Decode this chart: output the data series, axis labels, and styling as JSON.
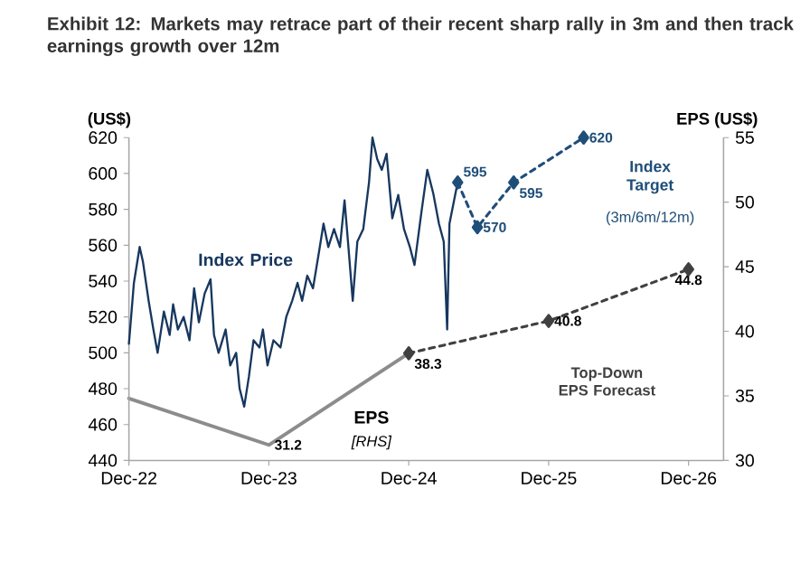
{
  "chart_data": {
    "type": "line",
    "title": "Exhibit 12: Markets may retrace part of their recent sharp rally in 3m and then track earnings growth over 12m",
    "ylabel": "(US$)",
    "y2label": "EPS (US$)",
    "annotations": [
      "[RHS]",
      "(3m/6m/12m)"
    ],
    "xlim": [
      "2022-12-01",
      "2027-03-01"
    ],
    "xticks": [
      {
        "value": "2022-12-01",
        "label": "Dec-22"
      },
      {
        "value": "2023-12-01",
        "label": "Dec-23"
      },
      {
        "value": "2024-12-01",
        "label": "Dec-24"
      },
      {
        "value": "2025-12-01",
        "label": "Dec-25"
      },
      {
        "value": "2026-12-01",
        "label": "Dec-26"
      }
    ],
    "ylim": [
      440,
      620
    ],
    "yticks": [
      440,
      460,
      480,
      500,
      520,
      540,
      560,
      580,
      600,
      620
    ],
    "y2lim": [
      30,
      55
    ],
    "y2ticks": [
      30,
      35,
      40,
      45,
      50,
      55
    ],
    "legend": false,
    "series": [
      {
        "name": "Index Price",
        "color": "#17375e",
        "x": [
          "2022-12-01",
          "2022-12-14",
          "2022-12-29",
          "2023-01-07",
          "2023-01-22",
          "2023-02-04",
          "2023-02-15",
          "2023-03-01",
          "2023-03-16",
          "2023-03-25",
          "2023-04-07",
          "2023-04-22",
          "2023-05-07",
          "2023-05-19",
          "2023-06-01",
          "2023-06-16",
          "2023-07-01",
          "2023-07-10",
          "2023-07-22",
          "2023-08-10",
          "2023-08-22",
          "2023-09-07",
          "2023-09-16",
          "2023-09-28",
          "2023-10-10",
          "2023-10-22",
          "2023-11-07",
          "2023-11-16",
          "2023-11-28",
          "2023-12-13",
          "2024-01-01",
          "2024-01-16",
          "2024-02-01",
          "2024-02-15",
          "2024-02-27",
          "2024-03-10",
          "2024-03-25",
          "2024-04-10",
          "2024-04-22",
          "2024-05-04",
          "2024-05-19",
          "2024-06-04",
          "2024-06-16",
          "2024-06-25",
          "2024-07-07",
          "2024-07-19",
          "2024-08-04",
          "2024-08-19",
          "2024-08-28",
          "2024-09-10",
          "2024-09-22",
          "2024-10-04",
          "2024-10-19",
          "2024-11-04",
          "2024-11-19",
          "2024-12-04",
          "2024-12-16",
          "2025-01-04",
          "2025-01-19",
          "2025-02-04",
          "2025-02-19",
          "2025-03-01",
          "2025-03-10",
          "2025-03-16",
          "2025-03-28",
          "2025-04-07"
        ],
        "values": [
          505,
          539,
          559,
          551,
          529,
          513,
          500,
          523,
          510,
          527,
          513,
          520,
          507,
          536,
          517,
          533,
          541,
          510,
          500,
          513,
          493,
          500,
          480,
          470,
          487,
          507,
          503,
          513,
          493,
          507,
          503,
          520,
          529,
          539,
          529,
          543,
          536,
          556,
          572,
          559,
          569,
          559,
          585,
          562,
          529,
          562,
          569,
          595,
          620,
          608,
          602,
          611,
          575,
          588,
          569,
          559,
          549,
          579,
          602,
          589,
          572,
          562,
          513,
          572,
          585,
          595
        ]
      },
      {
        "name": "EPS",
        "axis": "y2",
        "color": "#8c8c8c",
        "x": [
          "2022-12-01",
          "2023-12-01",
          "2024-12-01"
        ],
        "values": [
          34.8,
          31.2,
          38.3
        ],
        "value_labels": [
          null,
          "31.2",
          null
        ]
      },
      {
        "name": "Top-Down EPS Forecast",
        "axis": "y2",
        "color": "#404040",
        "line_style": "dashed",
        "marker": "diamond",
        "x": [
          "2024-12-01",
          "2025-12-01",
          "2026-12-01"
        ],
        "values": [
          38.3,
          40.8,
          44.8
        ],
        "value_labels": [
          "38.3",
          "40.8",
          "44.8"
        ]
      },
      {
        "name": "Index Target",
        "color": "#1f4e79",
        "line_style": "dashed",
        "marker": "diamond",
        "x": [
          "2025-04-07",
          "2025-05-28",
          "2025-09-01",
          "2026-03-01"
        ],
        "values": [
          595,
          570,
          595,
          620
        ],
        "value_labels": [
          "595",
          "570",
          "595",
          "620"
        ]
      }
    ]
  }
}
